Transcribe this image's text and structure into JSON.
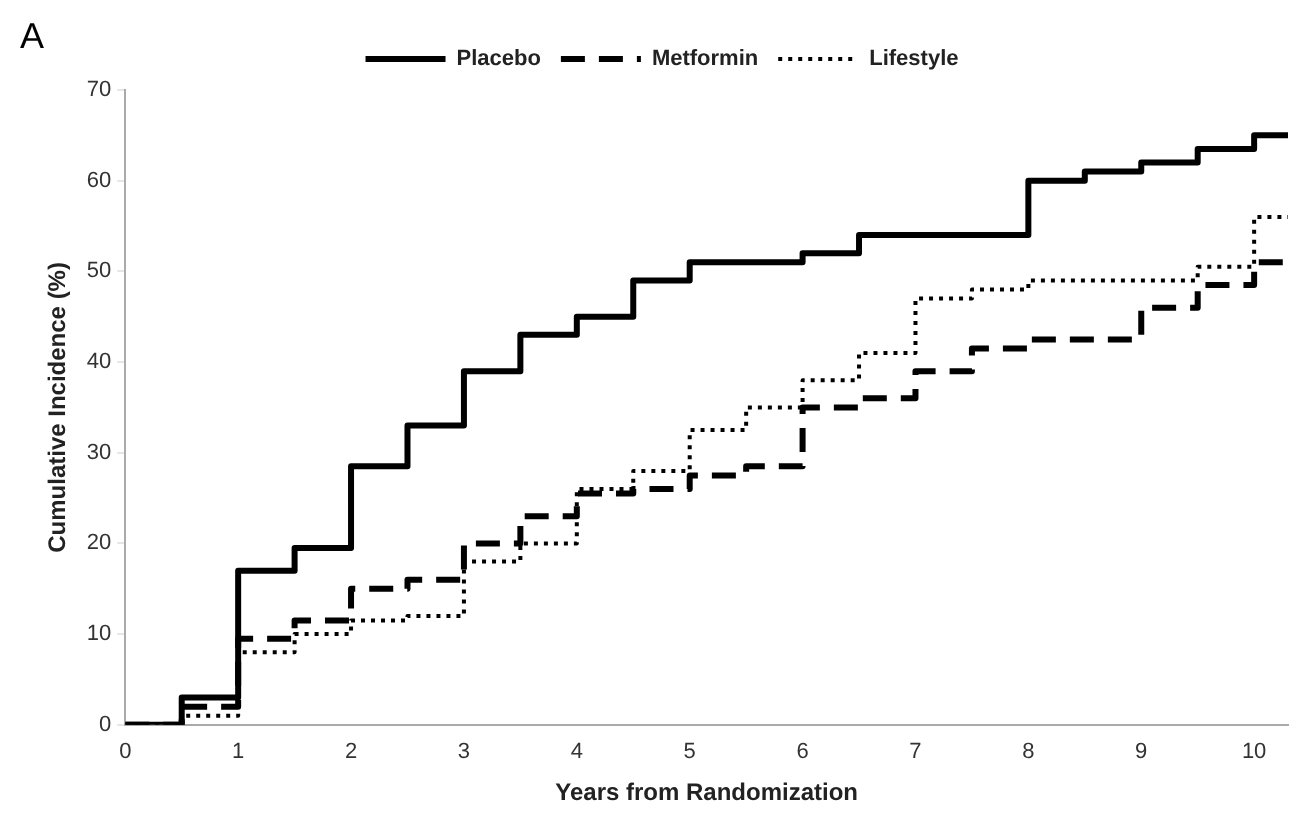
{
  "chart_data": {
    "type": "step",
    "xlabel": "Years from Randomization",
    "ylabel": "Cumulative Incidence (%)",
    "annotations": [
      "A"
    ],
    "x": [
      0,
      0.5,
      1,
      1.5,
      2,
      2.5,
      3,
      3.5,
      4,
      4.5,
      5,
      5.5,
      6,
      6.5,
      7,
      7.5,
      8,
      8.5,
      9,
      9.5,
      10,
      10.3
    ],
    "series": [
      {
        "name": "Placebo",
        "color": "#000000",
        "line_style": "solid",
        "values": [
          0,
          3,
          17,
          19.5,
          28.5,
          33,
          39,
          43,
          45,
          49,
          51,
          51,
          52,
          54,
          54,
          54,
          60,
          61,
          62,
          63.5,
          65,
          65
        ]
      },
      {
        "name": "Metformin",
        "color": "#000000",
        "line_style": "dashed",
        "values": [
          0,
          2,
          9.5,
          11.5,
          15,
          16,
          20,
          23,
          25.5,
          26,
          27.5,
          28.5,
          35,
          36,
          39,
          41.5,
          42.5,
          42.5,
          46,
          48.5,
          51,
          51
        ]
      },
      {
        "name": "Lifestyle",
        "color": "#000000",
        "line_style": "dotted",
        "values": [
          0,
          1,
          8,
          10,
          11.5,
          12,
          18,
          20,
          26,
          28,
          32.5,
          35,
          38,
          41,
          47,
          48,
          49,
          49,
          49,
          50.5,
          56,
          56
        ]
      }
    ],
    "xlim": [
      0,
      10.3
    ],
    "xticks": [
      0,
      1,
      2,
      3,
      4,
      5,
      6,
      7,
      8,
      9,
      10
    ],
    "ylim": [
      0,
      70
    ],
    "yticks": [
      0,
      10,
      20,
      30,
      40,
      50,
      60,
      70
    ],
    "legend": "top",
    "marker": "none",
    "grid": false
  }
}
